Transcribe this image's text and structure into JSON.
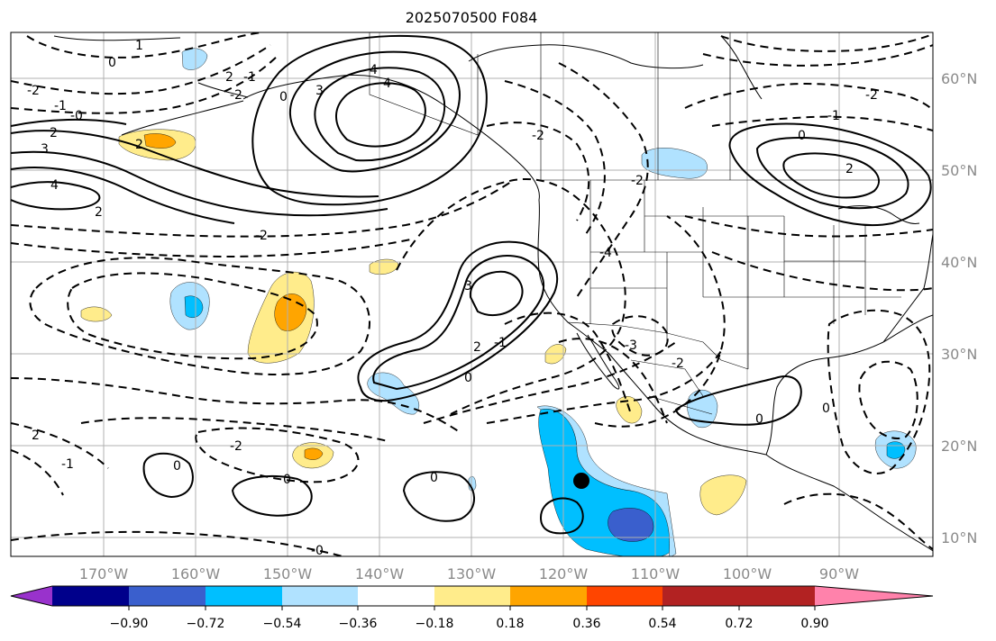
{
  "title": "2025070500 F084",
  "map": {
    "projection": "lat-lon",
    "lon_range": [
      -180,
      -80
    ],
    "lat_range": [
      8,
      66
    ],
    "grid": true,
    "lon_ticks": [
      "170°W",
      "160°W",
      "150°W",
      "140°W",
      "130°W",
      "120°W",
      "110°W",
      "100°W",
      "90°W"
    ],
    "lat_ticks": [
      "10°N",
      "20°N",
      "30°N",
      "40°N",
      "50°N",
      "60°N"
    ],
    "storm_marker": {
      "lon": -118,
      "lat": 16.3
    }
  },
  "contour_labels": [
    "1",
    "0",
    "2",
    "0",
    "-1",
    "-2",
    "2",
    "-2",
    "-1",
    "-0",
    "3",
    "4",
    "2",
    "4",
    "2",
    "-2",
    "3",
    "4",
    "3",
    "-1",
    "2",
    "0",
    "-2",
    "-2",
    "-3",
    "-4",
    "0",
    "-1",
    "-2",
    "2",
    "0",
    "-2",
    "0",
    "2",
    "-1",
    "-2",
    "0",
    "0",
    "0",
    "-0"
  ],
  "colorbar": {
    "extend": "both",
    "tick_labels": [
      "−0.90",
      "−0.72",
      "−0.54",
      "−0.36",
      "−0.18",
      "0.18",
      "0.36",
      "0.54",
      "0.72",
      "0.90"
    ],
    "colors": {
      "below": "#9932cc",
      "bins": [
        "#00008b",
        "#3a5fcd",
        "#00bfff",
        "#b0e2ff",
        "#ffffff",
        "#ffec8b",
        "#ffa500",
        "#ff4500",
        "#b22222"
      ],
      "above": "#ff82ab"
    }
  }
}
